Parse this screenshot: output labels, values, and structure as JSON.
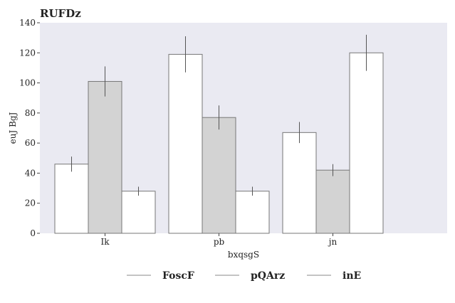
{
  "chart_data": {
    "type": "bar",
    "title": "RUFDz",
    "xlabel": "bxqsgS",
    "ylabel": "euJ BgJ",
    "ylim": [
      0,
      140
    ],
    "yticks": [
      0,
      20,
      40,
      60,
      80,
      100,
      120,
      140
    ],
    "categories": [
      "Ik",
      "pb",
      "jn"
    ],
    "grid": false,
    "legend_position": "bottom",
    "series": [
      {
        "name": "FoscF",
        "color": "#ffffff",
        "values": [
          46,
          119,
          67
        ],
        "errors": [
          5,
          12,
          7
        ]
      },
      {
        "name": "pQArz",
        "color": "#d3d3d3",
        "values": [
          101,
          77,
          42
        ],
        "errors": [
          10,
          8,
          4
        ]
      },
      {
        "name": "inE",
        "color": "#ffffff",
        "values": [
          28,
          28,
          120
        ],
        "errors": [
          3,
          3,
          12
        ]
      }
    ]
  }
}
